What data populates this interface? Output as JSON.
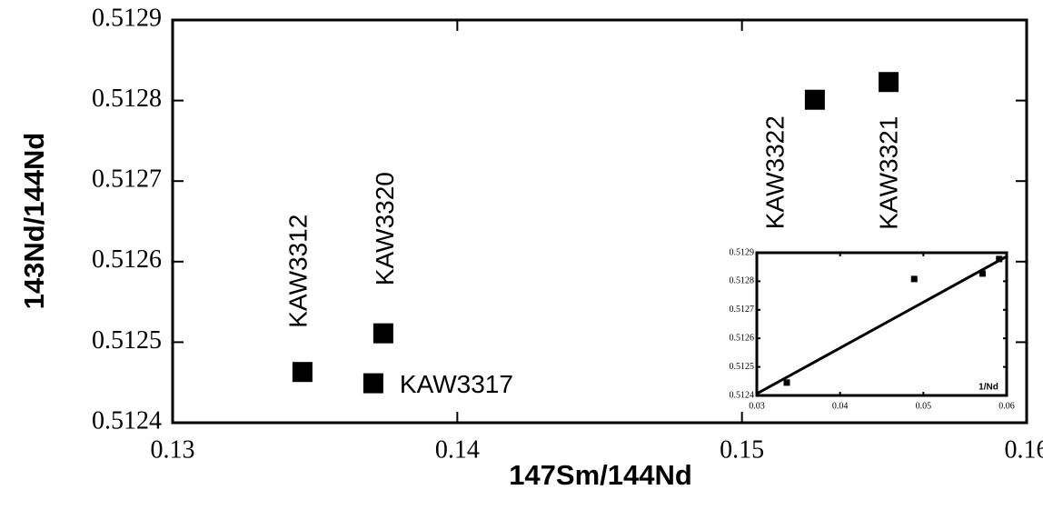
{
  "chart_data": [
    {
      "type": "scatter",
      "x_label": "147Sm/144Nd",
      "y_label": "143Nd/144Nd",
      "labels": [
        "KAW3312",
        "KAW3317",
        "KAW3320",
        "KAW3322",
        "KAW3321"
      ],
      "x": [
        0.13456,
        0.13705,
        0.1374,
        0.15256,
        0.15515
      ],
      "y": [
        0.512463,
        0.512449,
        0.512511,
        0.512801,
        0.512823
      ],
      "xlim": [
        0.13,
        0.16
      ],
      "ylim": [
        0.5124,
        0.5129
      ],
      "xticks": [
        0.13,
        0.14,
        0.15,
        0.16
      ],
      "yticks": [
        0.5124,
        0.5125,
        0.5126,
        0.5127,
        0.5128,
        0.5129
      ],
      "color": "#000000"
    },
    {
      "type": "scatter",
      "x_label": "1/Nd",
      "x": [
        0.0336,
        0.0489,
        0.0571,
        0.0591
      ],
      "y": [
        0.512445,
        0.512808,
        0.512827,
        0.512878
      ],
      "fit": {
        "x": [
          0.03,
          0.06
        ],
        "y": [
          0.512406,
          0.512887
        ]
      },
      "xlim": [
        0.03,
        0.06
      ],
      "ylim": [
        0.5124,
        0.5129
      ],
      "xticks": [
        0.03,
        0.04,
        0.05,
        0.06
      ],
      "yticks": [
        0.5124,
        0.5125,
        0.5126,
        0.5127,
        0.5128,
        0.5129
      ],
      "color": "#000000"
    }
  ]
}
